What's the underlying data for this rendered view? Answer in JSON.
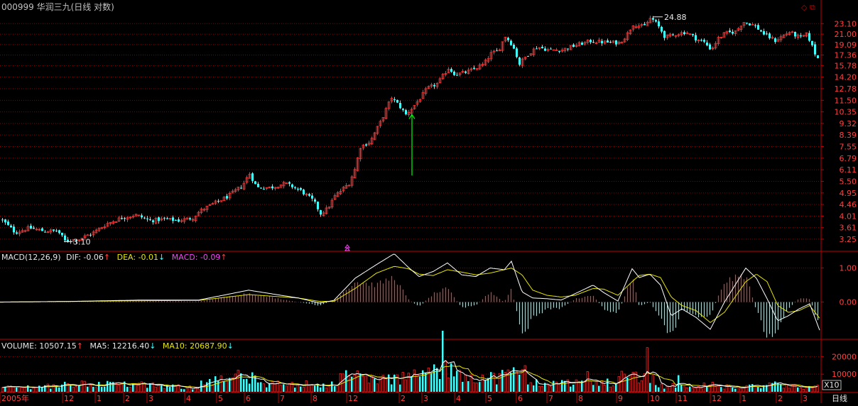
{
  "header": {
    "title": "000999 华润三九(日线 对数)",
    "icon_diamond": "diamond-icon",
    "icon_window": "restore-window-icon"
  },
  "colors": {
    "up": "#ff3030",
    "down": "#40ffff",
    "grid": "#8b0000",
    "axis": "#c00000",
    "ma_white": "#ffffff",
    "ma_yellow": "#e6e600",
    "macd_pos": "#ff3030",
    "macd_neg": "#40ffff",
    "arrow": "#00ff00"
  },
  "indicators": {
    "macd": {
      "label": "MACD(12,26,9)",
      "dif_label": "DIF: -0.06",
      "dif_arrow": "↑",
      "dea_label": "DEA: -0.01",
      "dea_arrow": "↓",
      "macd_label": "MACD: -0.09",
      "macd_arrow": "↑"
    },
    "volume": {
      "label": "VOLUME: 10507.15",
      "vol_arrow": "↑",
      "ma5_label": "MA5: 12216.40",
      "ma5_arrow": "↓",
      "ma10_label": "MA10: 20687.90",
      "ma10_arrow": "↓"
    }
  },
  "chart_data": [
    {
      "type": "candlestick",
      "scale": "log",
      "y_ticks": [
        "23.10",
        "21.00",
        "19.09",
        "17.36",
        "15.78",
        "14.20",
        "12.78",
        "11.50",
        "10.35",
        "9.32",
        "8.39",
        "7.55",
        "6.79",
        "6.11",
        "5.50",
        "4.95",
        "4.46",
        "4.01",
        "3.61",
        "3.25"
      ],
      "ylim": [
        2.95,
        25.5
      ],
      "annotations": {
        "max_label": "24.88",
        "min_label": "3.10"
      },
      "close_path": [
        [
          0,
          3.9
        ],
        [
          20,
          3.45
        ],
        [
          40,
          3.6
        ],
        [
          60,
          3.5
        ],
        [
          80,
          3.5
        ],
        [
          90,
          3.2
        ],
        [
          110,
          3.25
        ],
        [
          130,
          3.45
        ],
        [
          150,
          3.75
        ],
        [
          170,
          3.95
        ],
        [
          190,
          4.05
        ],
        [
          210,
          3.85
        ],
        [
          230,
          3.9
        ],
        [
          250,
          3.85
        ],
        [
          270,
          3.95
        ],
        [
          280,
          4.2
        ],
        [
          300,
          4.5
        ],
        [
          320,
          4.8
        ],
        [
          340,
          5.3
        ],
        [
          350,
          5.9
        ],
        [
          360,
          5.2
        ],
        [
          380,
          5.2
        ],
        [
          400,
          5.4
        ],
        [
          420,
          5.1
        ],
        [
          440,
          4.6
        ],
        [
          450,
          4.1
        ],
        [
          460,
          4.3
        ],
        [
          470,
          4.8
        ],
        [
          480,
          5.1
        ],
        [
          490,
          5.4
        ],
        [
          500,
          6.3
        ],
        [
          505,
          7.5
        ],
        [
          520,
          7.9
        ],
        [
          535,
          9.5
        ],
        [
          550,
          11.8
        ],
        [
          560,
          11.0
        ],
        [
          570,
          10.1
        ],
        [
          580,
          10.8
        ],
        [
          590,
          11.7
        ],
        [
          600,
          12.8
        ],
        [
          615,
          13.4
        ],
        [
          630,
          15.4
        ],
        [
          640,
          14.5
        ],
        [
          660,
          15.0
        ],
        [
          680,
          16.0
        ],
        [
          690,
          17.6
        ],
        [
          700,
          18.0
        ],
        [
          710,
          20.6
        ],
        [
          720,
          19.0
        ],
        [
          730,
          16.0
        ],
        [
          740,
          17.3
        ],
        [
          755,
          18.7
        ],
        [
          770,
          18.2
        ],
        [
          790,
          18.2
        ],
        [
          810,
          19.0
        ],
        [
          830,
          19.7
        ],
        [
          850,
          19.5
        ],
        [
          870,
          19.4
        ],
        [
          880,
          20.6
        ],
        [
          890,
          23.0
        ],
        [
          905,
          22.4
        ],
        [
          915,
          24.4
        ],
        [
          925,
          22.7
        ],
        [
          935,
          20.4
        ],
        [
          950,
          21.0
        ],
        [
          965,
          21.4
        ],
        [
          980,
          20.0
        ],
        [
          990,
          19.5
        ],
        [
          1000,
          18.2
        ],
        [
          1010,
          20.2
        ],
        [
          1020,
          21.2
        ],
        [
          1035,
          21.5
        ],
        [
          1045,
          23.5
        ],
        [
          1060,
          22.8
        ],
        [
          1075,
          20.9
        ],
        [
          1090,
          19.8
        ],
        [
          1110,
          21.4
        ],
        [
          1125,
          20.3
        ],
        [
          1135,
          21.0
        ],
        [
          1145,
          17.8
        ],
        [
          1155,
          15.9
        ]
      ],
      "green_arrow": {
        "from": 5.8,
        "to": 10.1,
        "x_index": 580
      }
    },
    {
      "type": "macd",
      "y_ticks": [
        "1.00",
        "0.00"
      ],
      "ylim": [
        -1.05,
        1.45
      ],
      "dif_path": [
        [
          0,
          0
        ],
        [
          100,
          0.02
        ],
        [
          200,
          0.06
        ],
        [
          280,
          0.06
        ],
        [
          350,
          0.35
        ],
        [
          420,
          0.12
        ],
        [
          450,
          -0.03
        ],
        [
          470,
          0.05
        ],
        [
          500,
          0.7
        ],
        [
          530,
          1.1
        ],
        [
          555,
          1.42
        ],
        [
          575,
          1.02
        ],
        [
          590,
          0.75
        ],
        [
          610,
          0.9
        ],
        [
          630,
          1.15
        ],
        [
          650,
          0.8
        ],
        [
          670,
          0.75
        ],
        [
          690,
          1.0
        ],
        [
          710,
          0.95
        ],
        [
          720,
          1.2
        ],
        [
          735,
          0.3
        ],
        [
          750,
          0.12
        ],
        [
          770,
          0.1
        ],
        [
          790,
          0.06
        ],
        [
          810,
          0.25
        ],
        [
          835,
          0.5
        ],
        [
          850,
          0.28
        ],
        [
          870,
          0.03
        ],
        [
          890,
          0.98
        ],
        [
          900,
          0.72
        ],
        [
          915,
          0.82
        ],
        [
          930,
          0.5
        ],
        [
          945,
          -0.4
        ],
        [
          960,
          -0.2
        ],
        [
          980,
          -0.45
        ],
        [
          1000,
          -0.8
        ],
        [
          1020,
          0.0
        ],
        [
          1035,
          0.5
        ],
        [
          1050,
          1.0
        ],
        [
          1065,
          0.7
        ],
        [
          1080,
          0.1
        ],
        [
          1095,
          -0.55
        ],
        [
          1110,
          -0.4
        ],
        [
          1125,
          -0.2
        ],
        [
          1140,
          -0.05
        ],
        [
          1155,
          -0.88
        ]
      ],
      "dea_path": [
        [
          0,
          0
        ],
        [
          100,
          0.02
        ],
        [
          200,
          0.04
        ],
        [
          280,
          0.05
        ],
        [
          350,
          0.22
        ],
        [
          420,
          0.12
        ],
        [
          450,
          0.02
        ],
        [
          470,
          0.02
        ],
        [
          500,
          0.4
        ],
        [
          530,
          0.85
        ],
        [
          555,
          1.05
        ],
        [
          575,
          0.98
        ],
        [
          590,
          0.82
        ],
        [
          610,
          0.78
        ],
        [
          630,
          0.95
        ],
        [
          650,
          0.88
        ],
        [
          670,
          0.8
        ],
        [
          690,
          0.85
        ],
        [
          710,
          0.95
        ],
        [
          720,
          1.0
        ],
        [
          735,
          0.8
        ],
        [
          750,
          0.35
        ],
        [
          770,
          0.2
        ],
        [
          790,
          0.15
        ],
        [
          810,
          0.2
        ],
        [
          835,
          0.4
        ],
        [
          850,
          0.38
        ],
        [
          870,
          0.2
        ],
        [
          890,
          0.6
        ],
        [
          900,
          0.78
        ],
        [
          915,
          0.82
        ],
        [
          930,
          0.72
        ],
        [
          945,
          0.15
        ],
        [
          960,
          -0.1
        ],
        [
          980,
          -0.25
        ],
        [
          1000,
          -0.6
        ],
        [
          1020,
          -0.3
        ],
        [
          1035,
          0.15
        ],
        [
          1050,
          0.6
        ],
        [
          1065,
          0.82
        ],
        [
          1080,
          0.6
        ],
        [
          1095,
          -0.1
        ],
        [
          1110,
          -0.3
        ],
        [
          1125,
          -0.25
        ],
        [
          1140,
          -0.1
        ],
        [
          1155,
          -0.5
        ]
      ]
    },
    {
      "type": "volume",
      "y_ticks": [
        "20000",
        "10000"
      ],
      "unit_label": "X10",
      "ylim": [
        0,
        29000
      ]
    }
  ],
  "x_axis": {
    "labels": [
      "2005年",
      "12",
      "1",
      "2",
      "3",
      "4",
      "5",
      "6",
      "7",
      "8",
      "12",
      "2",
      "3",
      "4",
      "5",
      "6",
      "7",
      "8",
      "9",
      "10",
      "11",
      "12",
      "1",
      "2",
      "3"
    ],
    "corner_label": "日线"
  }
}
